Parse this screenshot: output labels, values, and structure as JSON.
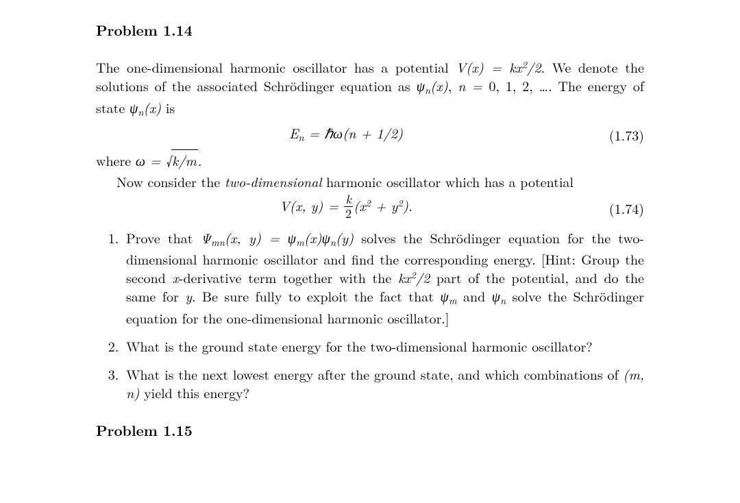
{
  "heading1": "Problem 1.14",
  "para1_a": "The one-dimensional harmonic oscillator has a potential ",
  "para1_b": ". We denote the solutions of the associated Schrödinger equation as ",
  "para1_c": ", ",
  "para1_d": "0, 1, 2, …. The energy of state ",
  "para1_e": " is",
  "eq1_num": "(1.73)",
  "para2_a": "where ",
  "para2_b": ".",
  "para3_a": "Now consider the ",
  "para3_b": "two-dimensional",
  "para3_c": " harmonic oscillator which has a potential",
  "eq2_num": "(1.74)",
  "q1_a": "Prove that ",
  "q1_b": " solves the Schrödinger equation for the two-dimensional harmonic oscillator and find the corresponding energy.  [Hint: Group the second ",
  "q1_c": "-derivative term together with the ",
  "q1_d": " part of the potential, and do the same for ",
  "q1_e": ".  Be sure fully to exploit the fact that ",
  "q1_f": " and ",
  "q1_g": " solve the Schrödinger equation for the one-dimensional harmonic oscillator.]",
  "q2": "What is the ground state energy for the two-dimensional harmonic oscillator?",
  "q3_a": "What is the next lowest energy after the ground state, and which combinations of ",
  "q3_b": " yield this energy?",
  "heading2": "Problem 1.15",
  "sym": {
    "V": "V",
    "x": "x",
    "y": "y",
    "k": "k",
    "psi": "ψ",
    "Psi": "Ψ",
    "n": "n",
    "m": "m",
    "E": "E",
    "hbar": "ℏ",
    "omega": "ω",
    "eq": " = "
  }
}
